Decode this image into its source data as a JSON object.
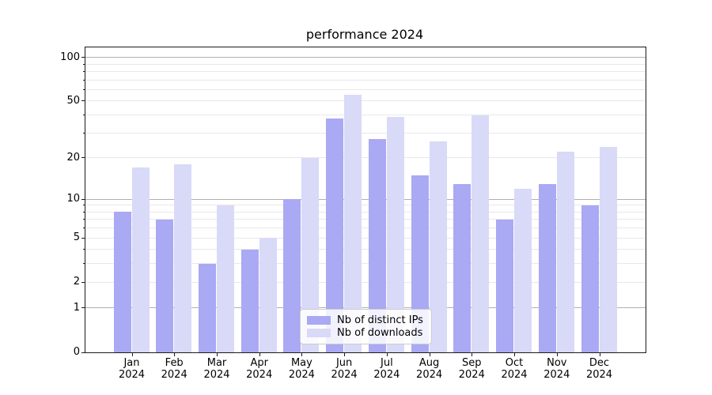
{
  "chart_data": {
    "type": "bar",
    "title": "performance 2024",
    "categories": [
      "Jan",
      "Feb",
      "Mar",
      "Apr",
      "May",
      "Jun",
      "Jul",
      "Aug",
      "Sep",
      "Oct",
      "Nov",
      "Dec"
    ],
    "x_year_label": "2024",
    "series": [
      {
        "name": "Nb of distinct IPs",
        "color": "#a9a9f4",
        "values": [
          8,
          7,
          3,
          4,
          10,
          38,
          27,
          15,
          13,
          7,
          13,
          9
        ]
      },
      {
        "name": "Nb of downloads",
        "color": "#d9d9f8",
        "values": [
          17,
          18,
          9,
          5,
          20,
          55,
          39,
          26,
          40,
          12,
          22,
          24
        ]
      }
    ],
    "yscale": "log1p",
    "ylim": [
      0,
      117
    ],
    "yticks_labeled": [
      0,
      1,
      2,
      5,
      10,
      20,
      50,
      100
    ],
    "grid_major": [
      1,
      10,
      100
    ],
    "grid_minor": [
      2,
      3,
      4,
      5,
      6,
      7,
      8,
      9,
      20,
      30,
      40,
      50,
      60,
      70,
      80,
      90
    ],
    "grid": "on",
    "legend_position": "lower-center",
    "xlabel": "",
    "ylabel": ""
  },
  "colors": {
    "grid_major": "#b0b0b4",
    "grid_minor": "#e8e8eb",
    "spine": "#1a1a1a",
    "legend_border": "#cccccc"
  }
}
